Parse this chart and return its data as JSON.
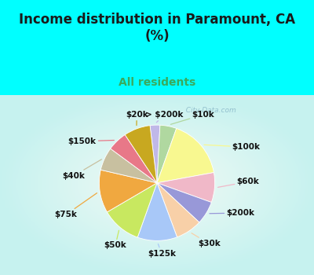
{
  "title": "Income distribution in Paramount, CA\n(%)",
  "subtitle": "All residents",
  "bg_color": "#00FFFF",
  "chart_bg_top_left": "#e8f5ee",
  "title_color": "#1a1a1a",
  "subtitle_color": "#3aaa5c",
  "labels": [
    "> $200k",
    "$10k",
    "$100k",
    "$60k",
    "$200k",
    "$30k",
    "$125k",
    "$50k",
    "$75k",
    "$40k",
    "$150k",
    "$20k"
  ],
  "sizes": [
    3,
    5,
    18,
    9,
    7,
    8,
    12,
    12,
    13,
    7,
    6,
    8
  ],
  "colors": [
    "#c0b8e8",
    "#b0d8a0",
    "#f8f890",
    "#f0b8c8",
    "#9898d8",
    "#f8d0a8",
    "#a8c8f8",
    "#c8e860",
    "#f0a840",
    "#c8c0a0",
    "#e87888",
    "#c8a820"
  ],
  "startangle": 97,
  "watermark": "  City-Data.com",
  "label_fontsize": 7.5
}
